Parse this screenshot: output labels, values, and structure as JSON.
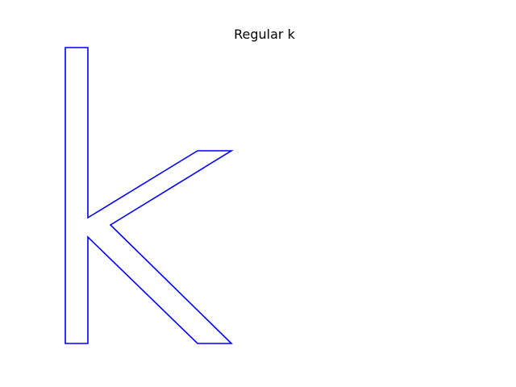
{
  "figure": {
    "title": "Regular k",
    "outline_color": "#0000ff",
    "background": "#ffffff"
  }
}
